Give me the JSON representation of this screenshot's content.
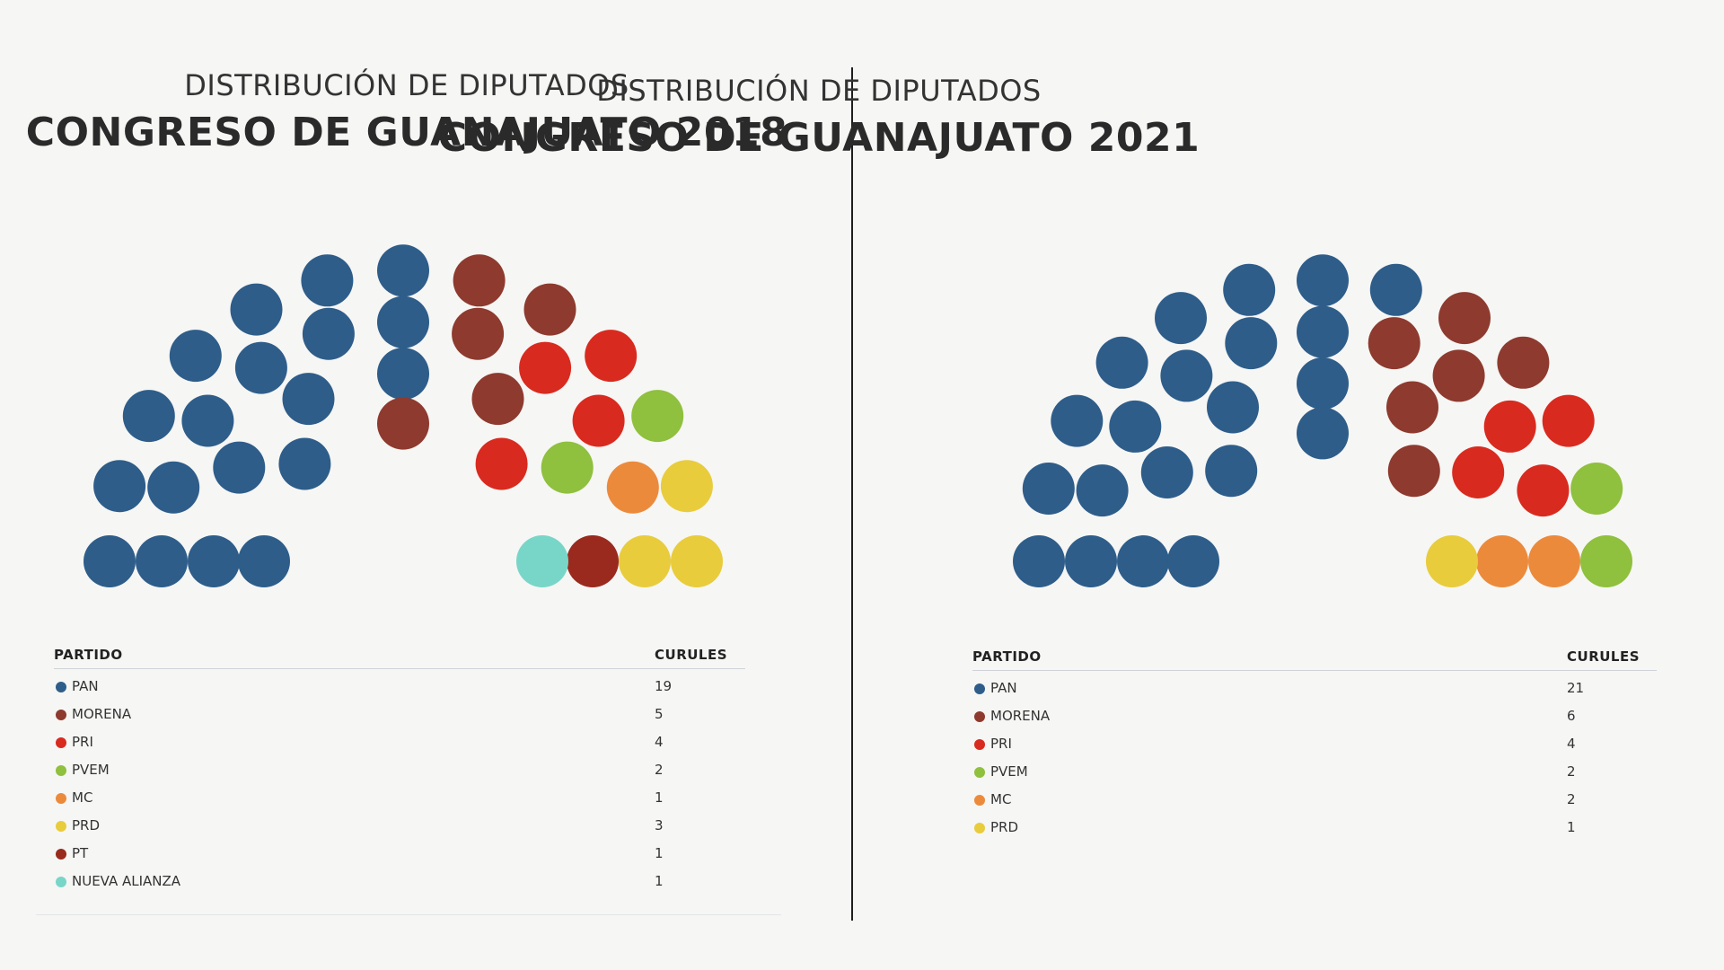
{
  "colors": {
    "PAN": "#2e5d8a",
    "MORENA": "#8e3a2f",
    "PRI": "#d92a1f",
    "PVEM": "#8fc03e",
    "MC": "#ec8a3c",
    "PRD": "#e8cc3c",
    "PT": "#9a2a1e",
    "NUEVA ALIANZA": "#78d6c8"
  },
  "chart_data": [
    {
      "type": "parliament",
      "subtitle": "DISTRIBUCIÓN DE DIPUTADOS",
      "title": "CONGRESO DE GUANAJUATO 2018",
      "legend_header": {
        "party": "PARTIDO",
        "seats": "CURULES"
      },
      "parties": [
        {
          "name": "PAN",
          "seats": 19,
          "color": "#2e5d8a"
        },
        {
          "name": "MORENA",
          "seats": 5,
          "color": "#8e3a2f"
        },
        {
          "name": "PRI",
          "seats": 4,
          "color": "#d92a1f"
        },
        {
          "name": "PVEM",
          "seats": 2,
          "color": "#8fc03e"
        },
        {
          "name": "MC",
          "seats": 1,
          "color": "#ec8a3c"
        },
        {
          "name": "PRD",
          "seats": 3,
          "color": "#e8cc3c"
        },
        {
          "name": "PT",
          "seats": 1,
          "color": "#9a2a1e"
        },
        {
          "name": "NUEVA ALIANZA",
          "seats": 1,
          "color": "#78d6c8"
        }
      ],
      "total_seats": 36
    },
    {
      "type": "parliament",
      "subtitle": "DISTRIBUCIÓN DE DIPUTADOS",
      "title": "CONGRESO DE GUANAJUATO 2021",
      "legend_header": {
        "party": "PARTIDO",
        "seats": "CURULES"
      },
      "parties": [
        {
          "name": "PAN",
          "seats": 21,
          "color": "#2e5d8a"
        },
        {
          "name": "MORENA",
          "seats": 6,
          "color": "#8e3a2f"
        },
        {
          "name": "PRI",
          "seats": 4,
          "color": "#d92a1f"
        },
        {
          "name": "PVEM",
          "seats": 2,
          "color": "#8fc03e"
        },
        {
          "name": "MC",
          "seats": 2,
          "color": "#ec8a3c"
        },
        {
          "name": "PRD",
          "seats": 1,
          "color": "#e8cc3c"
        }
      ],
      "total_seats": 36
    }
  ]
}
